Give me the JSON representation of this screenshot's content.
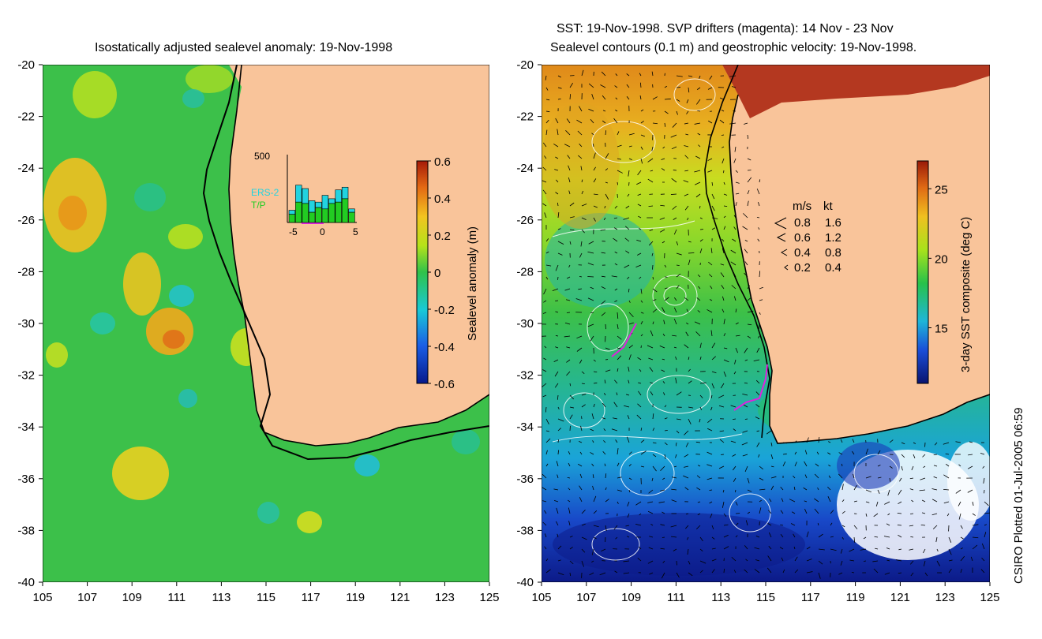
{
  "left_map": {
    "title": "Isostatically adjusted sealevel anomaly: 19-Nov-1998",
    "x_ticks": [
      "105",
      "107",
      "109",
      "111",
      "113",
      "115",
      "117",
      "119",
      "121",
      "123",
      "125"
    ],
    "y_ticks": [
      "-20",
      "-22",
      "-24",
      "-26",
      "-28",
      "-30",
      "-32",
      "-34",
      "-36",
      "-38",
      "-40"
    ],
    "colorbar": {
      "label": "Sealevel anomaly (m)",
      "ticks": [
        "0.6",
        "0.4",
        "0.2",
        "0",
        "-0.2",
        "-0.4",
        "-0.6"
      ],
      "range": [
        -0.6,
        0.6
      ]
    },
    "inset": {
      "y_label": "500",
      "x_ticks": [
        "-5",
        "0",
        "5"
      ],
      "legend": [
        {
          "label": "ERS-2",
          "color": "#22d3e0"
        },
        {
          "label": "T/P",
          "color": "#22cc22"
        }
      ],
      "bars": [
        {
          "day": -5,
          "ers": 0.18,
          "tp": 0.12
        },
        {
          "day": -4,
          "ers": 0.55,
          "tp": 0.3
        },
        {
          "day": -3,
          "ers": 0.5,
          "tp": 0.28
        },
        {
          "day": -2,
          "ers": 0.32,
          "tp": 0.15
        },
        {
          "day": -1,
          "ers": 0.3,
          "tp": 0.22
        },
        {
          "day": 0,
          "ers": 0.4,
          "tp": 0.2
        },
        {
          "day": 1,
          "ers": 0.35,
          "tp": 0.28
        },
        {
          "day": 2,
          "ers": 0.48,
          "tp": 0.3
        },
        {
          "day": 3,
          "ers": 0.52,
          "tp": 0.35
        },
        {
          "day": 4,
          "ers": 0.2,
          "tp": 0.15
        }
      ]
    }
  },
  "right_map": {
    "title_line1": "SST: 19-Nov-1998. SVP drifters (magenta): 14 Nov - 23 Nov",
    "title_line2": "Sealevel contours (0.1 m) and geostrophic velocity: 19-Nov-1998.",
    "x_ticks": [
      "105",
      "107",
      "109",
      "111",
      "113",
      "115",
      "117",
      "119",
      "121",
      "123",
      "125"
    ],
    "y_ticks": [
      "-20",
      "-22",
      "-24",
      "-26",
      "-28",
      "-30",
      "-32",
      "-34",
      "-36",
      "-38",
      "-40"
    ],
    "colorbar": {
      "label": "3-day SST composite (deg C)",
      "ticks": [
        "25",
        "20",
        "15"
      ],
      "range": [
        11,
        27
      ]
    },
    "velocity_legend": {
      "header_ms": "m/s",
      "header_kt": "kt",
      "rows": [
        {
          "ms": "0.8",
          "kt": "1.6"
        },
        {
          "ms": "0.6",
          "kt": "1.2"
        },
        {
          "ms": "0.4",
          "kt": "0.8"
        },
        {
          "ms": "0.2",
          "kt": "0.4"
        }
      ]
    }
  },
  "footer": {
    "plotted": "CSIRO Plotted 01-Jul-2005 06:59"
  },
  "colors": {
    "land": "#f9c49a",
    "drifter": "#e020e0",
    "coast": "#000000"
  }
}
